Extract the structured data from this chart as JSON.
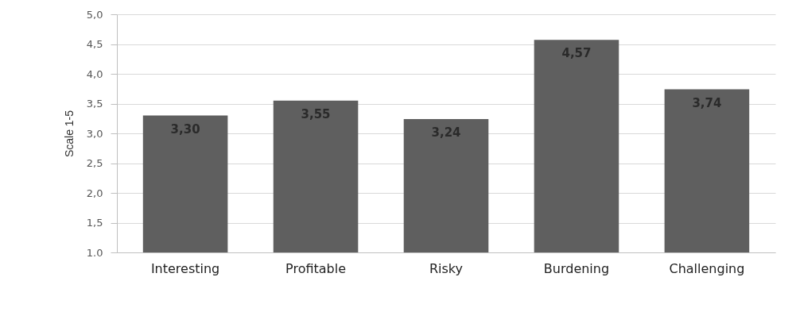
{
  "chart_data": {
    "type": "bar",
    "ylabel": "Scale 1-5",
    "categories": [
      "Interesting",
      "Profitable",
      "Risky",
      "Burdening",
      "Challenging"
    ],
    "values": [
      3.3,
      3.55,
      3.24,
      4.57,
      3.74
    ],
    "value_labels": [
      "3,30",
      "3,55",
      "3,24",
      "4,57",
      "3,74"
    ],
    "color": "#5f5f5f",
    "ylim": [
      1,
      5
    ],
    "yticks": [
      {
        "value": 1,
        "label": "1.0"
      },
      {
        "value": 1.5,
        "label": "1,5"
      },
      {
        "value": 2,
        "label": "2,0"
      },
      {
        "value": 2.5,
        "label": "2,5"
      },
      {
        "value": 3,
        "label": "3,0"
      },
      {
        "value": 3.5,
        "label": "3,5"
      },
      {
        "value": 4,
        "label": "4,0"
      },
      {
        "value": 4.5,
        "label": "4,5"
      },
      {
        "value": 5,
        "label": "5,0"
      }
    ],
    "grid": "y"
  }
}
